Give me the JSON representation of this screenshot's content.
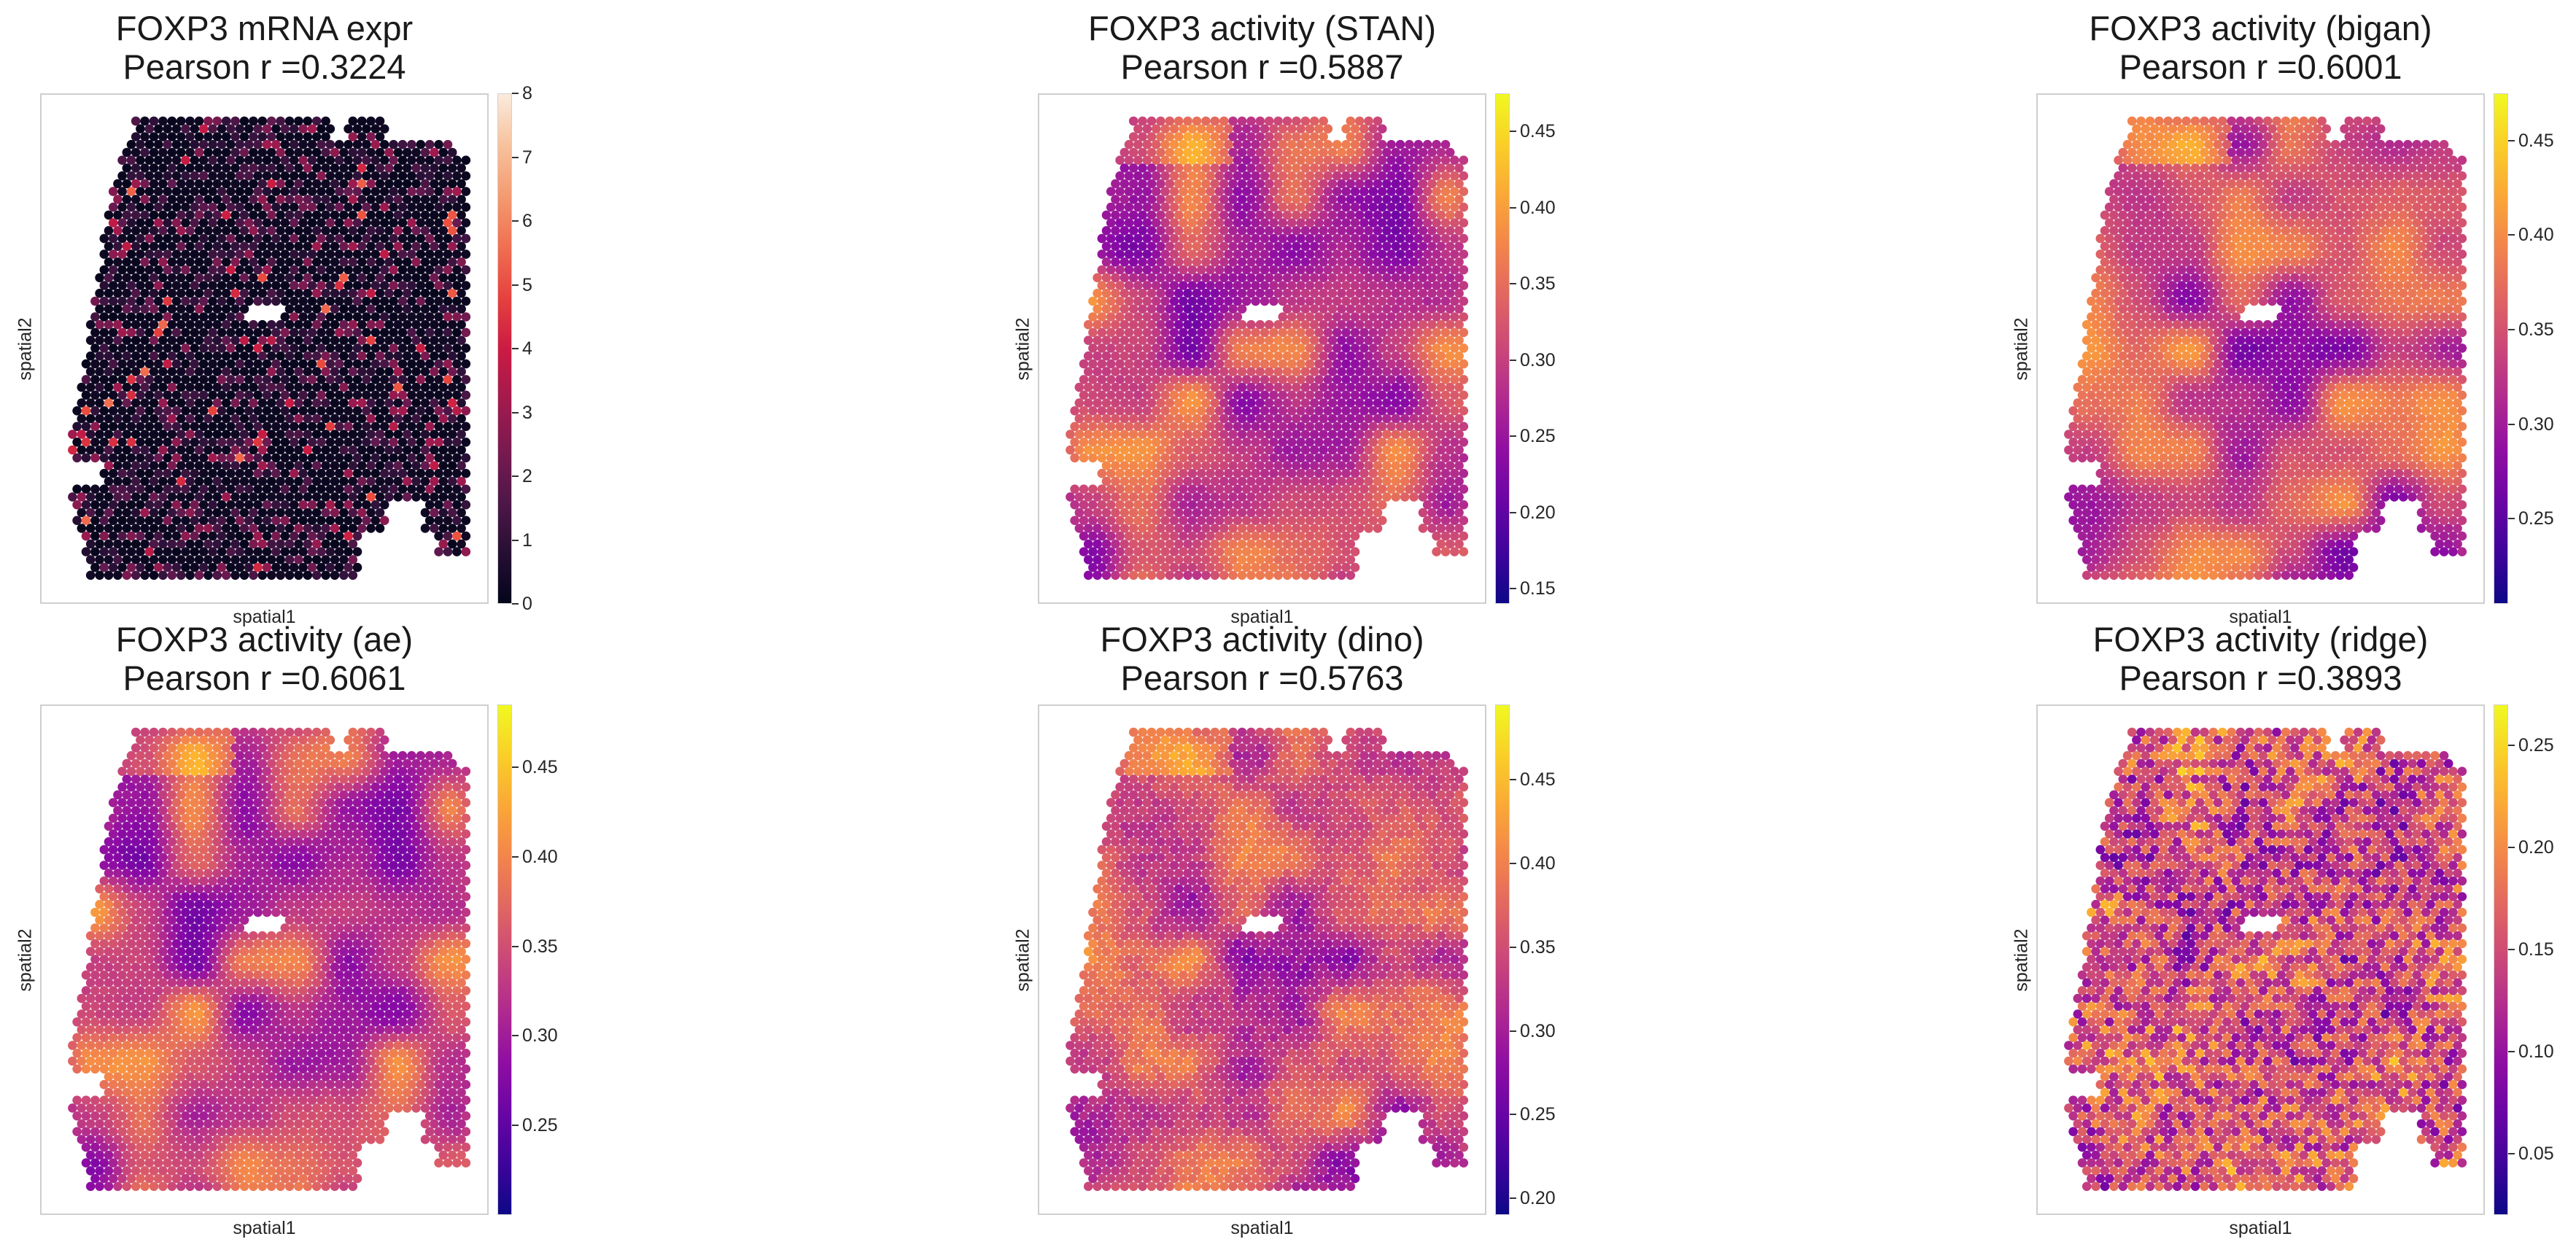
{
  "chart_data": [
    {
      "type": "heatmap",
      "title": "FOXP3 mRNA expr",
      "subtitle": "Pearson r =0.3224",
      "xlabel": "spatial1",
      "ylabel": "spatial2",
      "colormap": "rocket",
      "colorbar": {
        "min": 0,
        "max": 8,
        "ticks": [
          0,
          1,
          2,
          3,
          4,
          5,
          6,
          7,
          8
        ]
      },
      "pearson_r": 0.3224
    },
    {
      "type": "heatmap",
      "title": "FOXP3 activity (STAN)",
      "subtitle": "Pearson r =0.5887",
      "xlabel": "spatial1",
      "ylabel": "spatial2",
      "colormap": "plasma",
      "colorbar": {
        "min": 0.14,
        "max": 0.475,
        "ticks": [
          0.15,
          0.2,
          0.25,
          0.3,
          0.35,
          0.4,
          0.45
        ]
      },
      "pearson_r": 0.5887
    },
    {
      "type": "heatmap",
      "title": "FOXP3 activity (bigan)",
      "subtitle": "Pearson r =0.6001",
      "xlabel": "spatial1",
      "ylabel": "spatial2",
      "colormap": "plasma",
      "colorbar": {
        "min": 0.205,
        "max": 0.475,
        "ticks": [
          0.25,
          0.3,
          0.35,
          0.4,
          0.45
        ]
      },
      "pearson_r": 0.6001
    },
    {
      "type": "heatmap",
      "title": "FOXP3 activity (ae)",
      "subtitle": "Pearson r =0.6061",
      "xlabel": "spatial1",
      "ylabel": "spatial2",
      "colormap": "plasma",
      "colorbar": {
        "min": 0.2,
        "max": 0.485,
        "ticks": [
          0.25,
          0.3,
          0.35,
          0.4,
          0.45
        ]
      },
      "pearson_r": 0.6061
    },
    {
      "type": "heatmap",
      "title": "FOXP3 activity (dino)",
      "subtitle": "Pearson r =0.5763",
      "xlabel": "spatial1",
      "ylabel": "spatial2",
      "colormap": "plasma",
      "colorbar": {
        "min": 0.19,
        "max": 0.495,
        "ticks": [
          0.2,
          0.25,
          0.3,
          0.35,
          0.4,
          0.45
        ]
      },
      "pearson_r": 0.5763
    },
    {
      "type": "heatmap",
      "title": "FOXP3 activity (ridge)",
      "subtitle": "Pearson r =0.3893",
      "xlabel": "spatial1",
      "ylabel": "spatial2",
      "colormap": "plasma",
      "colorbar": {
        "min": 0.02,
        "max": 0.27,
        "ticks": [
          0.05,
          0.1,
          0.15,
          0.2,
          0.25
        ]
      },
      "pearson_r": 0.3893
    }
  ]
}
